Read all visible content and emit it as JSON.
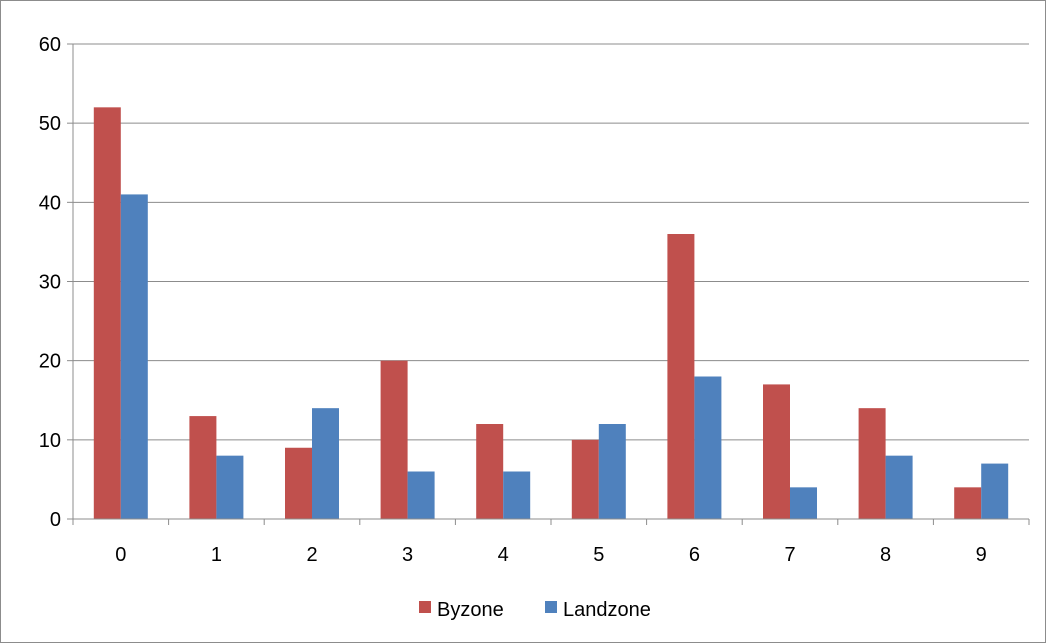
{
  "chart_data": {
    "type": "bar",
    "title": "",
    "xlabel": "",
    "ylabel": "",
    "categories": [
      "0",
      "1",
      "2",
      "3",
      "4",
      "5",
      "6",
      "7",
      "8",
      "9"
    ],
    "series": [
      {
        "name": "Byzone",
        "color": "#C0504D",
        "values": [
          52,
          13,
          9,
          20,
          12,
          10,
          36,
          17,
          14,
          4
        ]
      },
      {
        "name": "Landzone",
        "color": "#4F81BD",
        "values": [
          41,
          8,
          14,
          6,
          6,
          12,
          18,
          4,
          8,
          7
        ]
      }
    ],
    "ylim": [
      0,
      60
    ],
    "yticks": [
      0,
      10,
      20,
      30,
      40,
      50,
      60
    ],
    "grid": true,
    "legend_position": "bottom"
  }
}
